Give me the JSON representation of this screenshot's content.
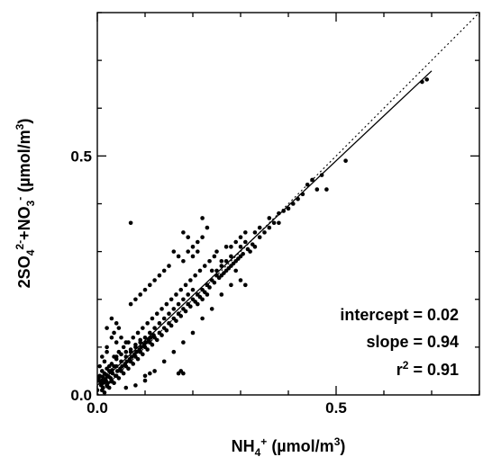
{
  "chart_data": {
    "type": "scatter",
    "xlim": [
      0,
      0.8
    ],
    "ylim": [
      0,
      0.8
    ],
    "grid": false,
    "xlabel": {
      "main": "NH",
      "sub": "4",
      "sup": "+",
      "units_pre": " (µmol/m",
      "units_sup": "3",
      "units_post": ")"
    },
    "ylabel": {
      "p1": "2SO",
      "p1_sub": "4",
      "p1_sup": "2-",
      "p2": "+NO",
      "p2_sub": "3",
      "p2_sup": "-",
      "units_pre": " (µmol/m",
      "units_sup": "3",
      "units_post": ")"
    },
    "xticks": [
      {
        "value": 0.0,
        "label": "0.0"
      },
      {
        "value": 0.5,
        "label": "0.5"
      }
    ],
    "yticks": [
      {
        "value": 0.0,
        "label": "0.0"
      },
      {
        "value": 0.5,
        "label": "0.5"
      }
    ],
    "minor_tick_step": 0.1,
    "annotations": {
      "intercept": "intercept = 0.02",
      "slope": "slope = 0.94",
      "r2_pre": "r",
      "r2_sup": "2",
      "r2_post": " = 0.91"
    },
    "fit_line": {
      "intercept": 0.02,
      "slope": 0.94,
      "style": "solid",
      "x_range": [
        0.0,
        0.7
      ]
    },
    "one_to_one_line": {
      "intercept": 0.0,
      "slope": 1.0,
      "style": "dotted"
    },
    "series": [
      {
        "points": [
          [
            0.69,
            0.66
          ],
          [
            0.68,
            0.655
          ],
          [
            0.52,
            0.49
          ],
          [
            0.48,
            0.43
          ],
          [
            0.46,
            0.43
          ],
          [
            0.44,
            0.44
          ],
          [
            0.43,
            0.42
          ],
          [
            0.42,
            0.41
          ],
          [
            0.4,
            0.39
          ],
          [
            0.38,
            0.36
          ],
          [
            0.37,
            0.36
          ],
          [
            0.36,
            0.35
          ],
          [
            0.35,
            0.34
          ],
          [
            0.34,
            0.33
          ],
          [
            0.33,
            0.31
          ],
          [
            0.32,
            0.3
          ],
          [
            0.31,
            0.32
          ],
          [
            0.3,
            0.29
          ],
          [
            0.3,
            0.31
          ],
          [
            0.29,
            0.28
          ],
          [
            0.28,
            0.27
          ],
          [
            0.29,
            0.26
          ],
          [
            0.3,
            0.24
          ],
          [
            0.31,
            0.23
          ],
          [
            0.28,
            0.29
          ],
          [
            0.27,
            0.28
          ],
          [
            0.27,
            0.26
          ],
          [
            0.26,
            0.27
          ],
          [
            0.26,
            0.25
          ],
          [
            0.25,
            0.26
          ],
          [
            0.25,
            0.25
          ],
          [
            0.24,
            0.24
          ],
          [
            0.24,
            0.26
          ],
          [
            0.23,
            0.23
          ],
          [
            0.23,
            0.21
          ],
          [
            0.22,
            0.22
          ],
          [
            0.22,
            0.2
          ],
          [
            0.21,
            0.21
          ],
          [
            0.21,
            0.19
          ],
          [
            0.2,
            0.2
          ],
          [
            0.2,
            0.22
          ],
          [
            0.19,
            0.19
          ],
          [
            0.19,
            0.21
          ],
          [
            0.18,
            0.18
          ],
          [
            0.18,
            0.2
          ],
          [
            0.17,
            0.17
          ],
          [
            0.17,
            0.19
          ],
          [
            0.16,
            0.16
          ],
          [
            0.16,
            0.18
          ],
          [
            0.15,
            0.15
          ],
          [
            0.15,
            0.17
          ],
          [
            0.14,
            0.14
          ],
          [
            0.14,
            0.16
          ],
          [
            0.13,
            0.13
          ],
          [
            0.13,
            0.15
          ],
          [
            0.12,
            0.12
          ],
          [
            0.12,
            0.14
          ],
          [
            0.11,
            0.11
          ],
          [
            0.11,
            0.13
          ],
          [
            0.1,
            0.1
          ],
          [
            0.1,
            0.12
          ],
          [
            0.09,
            0.09
          ],
          [
            0.09,
            0.11
          ],
          [
            0.08,
            0.08
          ],
          [
            0.08,
            0.1
          ],
          [
            0.07,
            0.07
          ],
          [
            0.07,
            0.09
          ],
          [
            0.06,
            0.06
          ],
          [
            0.06,
            0.08
          ],
          [
            0.05,
            0.05
          ],
          [
            0.05,
            0.07
          ],
          [
            0.04,
            0.04
          ],
          [
            0.04,
            0.06
          ],
          [
            0.03,
            0.03
          ],
          [
            0.03,
            0.05
          ],
          [
            0.02,
            0.02
          ],
          [
            0.02,
            0.04
          ],
          [
            0.01,
            0.01
          ],
          [
            0.01,
            0.03
          ],
          [
            0.0,
            0.01
          ],
          [
            0.0,
            0.03
          ],
          [
            0.015,
            0.005
          ],
          [
            0.025,
            0.015
          ],
          [
            0.035,
            0.025
          ],
          [
            0.045,
            0.035
          ],
          [
            0.055,
            0.045
          ],
          [
            0.065,
            0.055
          ],
          [
            0.075,
            0.065
          ],
          [
            0.085,
            0.075
          ],
          [
            0.095,
            0.085
          ],
          [
            0.105,
            0.095
          ],
          [
            0.115,
            0.105
          ],
          [
            0.125,
            0.115
          ],
          [
            0.135,
            0.125
          ],
          [
            0.145,
            0.135
          ],
          [
            0.155,
            0.145
          ],
          [
            0.165,
            0.155
          ],
          [
            0.175,
            0.165
          ],
          [
            0.185,
            0.175
          ],
          [
            0.195,
            0.185
          ],
          [
            0.205,
            0.195
          ],
          [
            0.215,
            0.205
          ],
          [
            0.225,
            0.215
          ],
          [
            0.235,
            0.225
          ],
          [
            0.245,
            0.235
          ],
          [
            0.255,
            0.245
          ],
          [
            0.265,
            0.255
          ],
          [
            0.275,
            0.265
          ],
          [
            0.285,
            0.275
          ],
          [
            0.295,
            0.285
          ],
          [
            0.305,
            0.295
          ],
          [
            0.315,
            0.305
          ],
          [
            0.325,
            0.315
          ],
          [
            0.02,
            0.1
          ],
          [
            0.03,
            0.12
          ],
          [
            0.01,
            0.08
          ],
          [
            0.04,
            0.11
          ],
          [
            0.02,
            0.09
          ],
          [
            0.005,
            0.06
          ],
          [
            0.01,
            0.05
          ],
          [
            0.015,
            0.07
          ],
          [
            0.025,
            0.06
          ],
          [
            0.035,
            0.08
          ],
          [
            0.045,
            0.09
          ],
          [
            0.055,
            0.1
          ],
          [
            0.065,
            0.11
          ],
          [
            0.075,
            0.12
          ],
          [
            0.085,
            0.13
          ],
          [
            0.095,
            0.14
          ],
          [
            0.105,
            0.15
          ],
          [
            0.115,
            0.16
          ],
          [
            0.125,
            0.17
          ],
          [
            0.135,
            0.18
          ],
          [
            0.145,
            0.19
          ],
          [
            0.155,
            0.2
          ],
          [
            0.165,
            0.21
          ],
          [
            0.175,
            0.22
          ],
          [
            0.185,
            0.23
          ],
          [
            0.195,
            0.24
          ],
          [
            0.205,
            0.25
          ],
          [
            0.215,
            0.26
          ],
          [
            0.225,
            0.27
          ],
          [
            0.235,
            0.28
          ],
          [
            0.245,
            0.29
          ],
          [
            0.06,
            0.015
          ],
          [
            0.08,
            0.02
          ],
          [
            0.1,
            0.03
          ],
          [
            0.12,
            0.05
          ],
          [
            0.14,
            0.07
          ],
          [
            0.16,
            0.09
          ],
          [
            0.18,
            0.11
          ],
          [
            0.2,
            0.13
          ],
          [
            0.22,
            0.16
          ],
          [
            0.24,
            0.18
          ],
          [
            0.26,
            0.21
          ],
          [
            0.28,
            0.23
          ],
          [
            0.07,
            0.36
          ],
          [
            0.18,
            0.34
          ],
          [
            0.19,
            0.33
          ],
          [
            0.2,
            0.31
          ],
          [
            0.19,
            0.3
          ],
          [
            0.21,
            0.3
          ],
          [
            0.2,
            0.29
          ],
          [
            0.22,
            0.37
          ],
          [
            0.23,
            0.35
          ],
          [
            0.22,
            0.33
          ],
          [
            0.21,
            0.32
          ],
          [
            0.16,
            0.3
          ],
          [
            0.17,
            0.29
          ],
          [
            0.18,
            0.28
          ],
          [
            0.15,
            0.27
          ],
          [
            0.14,
            0.26
          ],
          [
            0.13,
            0.25
          ],
          [
            0.12,
            0.24
          ],
          [
            0.11,
            0.23
          ],
          [
            0.1,
            0.22
          ],
          [
            0.09,
            0.21
          ],
          [
            0.08,
            0.2
          ],
          [
            0.07,
            0.19
          ],
          [
            0.25,
            0.3
          ],
          [
            0.27,
            0.31
          ],
          [
            0.26,
            0.28
          ],
          [
            0.03,
            0.16
          ],
          [
            0.04,
            0.15
          ],
          [
            0.045,
            0.14
          ],
          [
            0.05,
            0.12
          ],
          [
            0.06,
            0.11
          ],
          [
            0.02,
            0.14
          ],
          [
            0.035,
            0.13
          ],
          [
            0.1,
            0.04
          ],
          [
            0.11,
            0.045
          ],
          [
            0.17,
            0.045
          ],
          [
            0.175,
            0.05
          ],
          [
            0.18,
            0.045
          ],
          [
            0.005,
            0.04
          ],
          [
            0.008,
            0.02
          ],
          [
            0.012,
            0.015
          ],
          [
            0.018,
            0.03
          ],
          [
            0.022,
            0.025
          ],
          [
            0.028,
            0.035
          ],
          [
            0.032,
            0.045
          ],
          [
            0.038,
            0.04
          ],
          [
            0.042,
            0.05
          ],
          [
            0.048,
            0.055
          ],
          [
            0.052,
            0.06
          ],
          [
            0.058,
            0.065
          ],
          [
            0.062,
            0.07
          ],
          [
            0.068,
            0.075
          ],
          [
            0.072,
            0.08
          ],
          [
            0.078,
            0.085
          ],
          [
            0.082,
            0.09
          ],
          [
            0.088,
            0.095
          ],
          [
            0.092,
            0.1
          ],
          [
            0.098,
            0.105
          ],
          [
            0.102,
            0.11
          ],
          [
            0.108,
            0.115
          ],
          [
            0.112,
            0.12
          ],
          [
            0.118,
            0.125
          ],
          [
            0.04,
            0.08
          ],
          [
            0.05,
            0.085
          ],
          [
            0.06,
            0.09
          ],
          [
            0.07,
            0.095
          ],
          [
            0.08,
            0.105
          ],
          [
            0.09,
            0.115
          ],
          [
            0.02,
            0.055
          ],
          [
            0.03,
            0.065
          ],
          [
            0.04,
            0.075
          ],
          [
            0.015,
            0.045
          ],
          [
            0.025,
            0.05
          ],
          [
            0.035,
            0.06
          ],
          [
            0.003,
            0.035
          ],
          [
            0.006,
            0.028
          ],
          [
            0.009,
            0.022
          ],
          [
            0.011,
            0.038
          ],
          [
            0.014,
            0.026
          ],
          [
            0.017,
            0.033
          ],
          [
            0.019,
            0.042
          ],
          [
            0.021,
            0.018
          ],
          [
            0.024,
            0.038
          ],
          [
            0.027,
            0.048
          ],
          [
            0.029,
            0.028
          ],
          [
            0.031,
            0.052
          ],
          [
            0.33,
            0.34
          ],
          [
            0.34,
            0.35
          ],
          [
            0.36,
            0.37
          ],
          [
            0.38,
            0.38
          ],
          [
            0.39,
            0.385
          ],
          [
            0.41,
            0.4
          ],
          [
            0.45,
            0.45
          ],
          [
            0.47,
            0.46
          ],
          [
            0.3,
            0.33
          ],
          [
            0.31,
            0.34
          ],
          [
            0.29,
            0.32
          ],
          [
            0.28,
            0.31
          ]
        ]
      }
    ]
  }
}
